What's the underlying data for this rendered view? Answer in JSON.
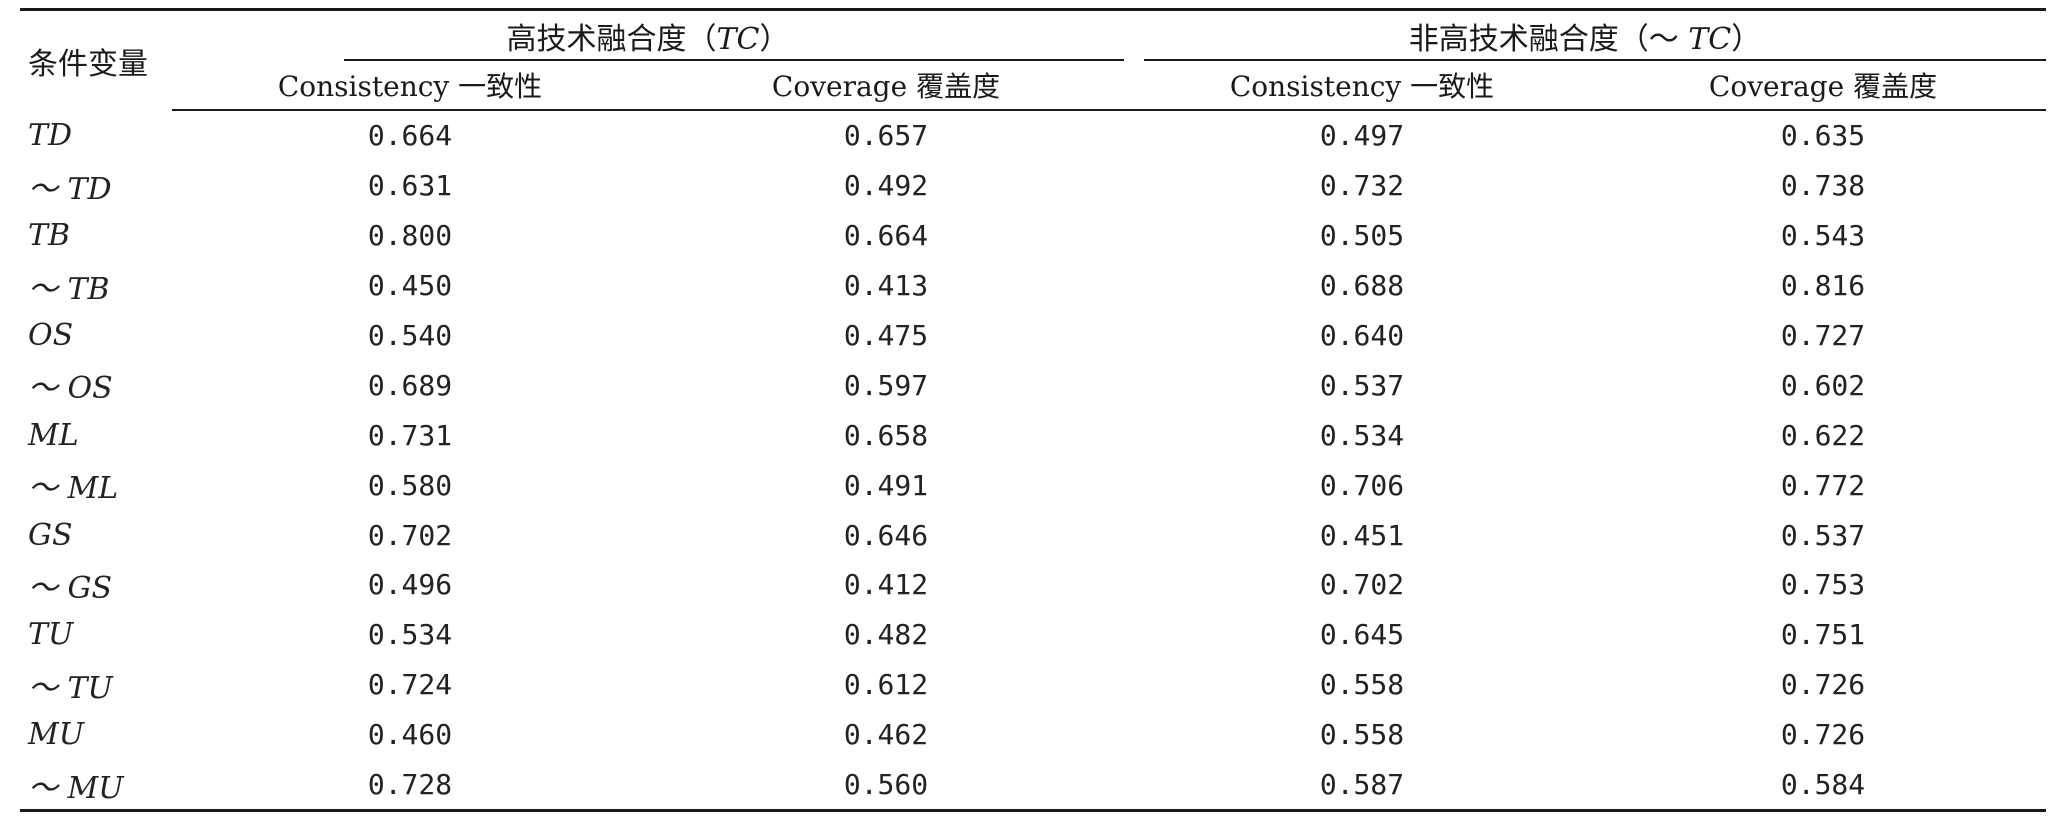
{
  "table": {
    "row_header_label": "条件变量",
    "groups": [
      {
        "label_pre": "高技术融合度（",
        "label_italic": "TC",
        "label_post": "）"
      },
      {
        "label_pre": "非高技术融合度（～ ",
        "label_italic": "TC",
        "label_post": "）"
      }
    ],
    "subheaders": [
      "Consistency 一致性",
      "Coverage 覆盖度",
      "Consistency 一致性",
      "Coverage 覆盖度"
    ],
    "rows": [
      {
        "cond": "TD",
        "values": [
          "0.664",
          "0.657",
          "0.497",
          "0.635"
        ]
      },
      {
        "cond": "～ TD",
        "values": [
          "0.631",
          "0.492",
          "0.732",
          "0.738"
        ]
      },
      {
        "cond": "TB",
        "values": [
          "0.800",
          "0.664",
          "0.505",
          "0.543"
        ]
      },
      {
        "cond": "～ TB",
        "values": [
          "0.450",
          "0.413",
          "0.688",
          "0.816"
        ]
      },
      {
        "cond": "OS",
        "values": [
          "0.540",
          "0.475",
          "0.640",
          "0.727"
        ]
      },
      {
        "cond": "～ OS",
        "values": [
          "0.689",
          "0.597",
          "0.537",
          "0.602"
        ]
      },
      {
        "cond": "ML",
        "values": [
          "0.731",
          "0.658",
          "0.534",
          "0.622"
        ]
      },
      {
        "cond": "～ ML",
        "values": [
          "0.580",
          "0.491",
          "0.706",
          "0.772"
        ]
      },
      {
        "cond": "GS",
        "values": [
          "0.702",
          "0.646",
          "0.451",
          "0.537"
        ]
      },
      {
        "cond": "～ GS",
        "values": [
          "0.496",
          "0.412",
          "0.702",
          "0.753"
        ]
      },
      {
        "cond": "TU",
        "values": [
          "0.534",
          "0.482",
          "0.645",
          "0.751"
        ]
      },
      {
        "cond": "～ TU",
        "values": [
          "0.724",
          "0.612",
          "0.558",
          "0.726"
        ]
      },
      {
        "cond": "MU",
        "values": [
          "0.460",
          "0.462",
          "0.558",
          "0.726"
        ]
      },
      {
        "cond": "～ MU",
        "values": [
          "0.728",
          "0.560",
          "0.587",
          "0.584"
        ]
      }
    ]
  }
}
